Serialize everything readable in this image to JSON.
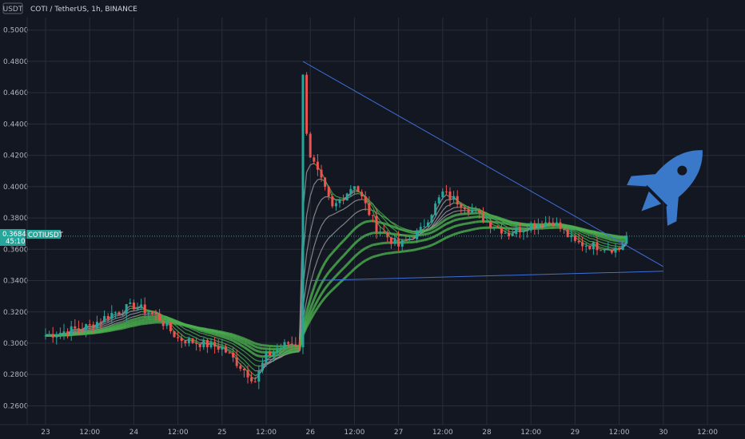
{
  "header": {
    "currency_badge": "USDT",
    "title": "COTI / TetherUS, 1h, BINANCE"
  },
  "colors": {
    "background": "#131722",
    "grid": "#2a2e39",
    "up": "#26a69a",
    "down": "#ef5350",
    "ribbon_bull": "#4caf50",
    "ribbon_neutral": "#9e9e9e",
    "trendline": "#3f6fd8",
    "rocket": "#3a78c9",
    "price_badge": "#26a69a"
  },
  "icons": {
    "rocket": "rocket-icon"
  },
  "price_badge": {
    "price": "0.3684",
    "countdown": "45:10",
    "symbol": "COTIUSDT"
  },
  "chart_data": {
    "type": "candlestick",
    "title": "COTI / TetherUS, 1h, BINANCE",
    "ylabel": "USDT",
    "ylim": [
      0.248,
      0.508
    ],
    "y_ticks": [
      "0.5000",
      "0.4800",
      "0.4600",
      "0.4400",
      "0.4200",
      "0.4000",
      "0.3800",
      "0.3600",
      "0.3400",
      "0.3200",
      "0.3000",
      "0.2800",
      "0.2600"
    ],
    "x_ticks": [
      "23",
      "12:00",
      "24",
      "12:00",
      "25",
      "12:00",
      "26",
      "12:00",
      "27",
      "12:00",
      "28",
      "12:00",
      "29",
      "12:00",
      "30",
      "12:00"
    ],
    "grid": true,
    "last_price": 0.3684,
    "price_path": [
      [
        "23 00:00",
        0.305
      ],
      [
        "23 12:00",
        0.311
      ],
      [
        "23 18:00",
        0.319
      ],
      [
        "24 00:00",
        0.324
      ],
      [
        "24 06:00",
        0.318
      ],
      [
        "24 12:00",
        0.303
      ],
      [
        "24 18:00",
        0.3
      ],
      [
        "25 00:00",
        0.297
      ],
      [
        "25 06:00",
        0.283
      ],
      [
        "25 09:00",
        0.276
      ],
      [
        "25 12:00",
        0.292
      ],
      [
        "25 18:00",
        0.3
      ],
      [
        "25 21:00",
        0.299
      ],
      [
        "25 22:00",
        0.47
      ],
      [
        "25 23:00",
        0.436
      ],
      [
        "26 00:00",
        0.42
      ],
      [
        "26 06:00",
        0.386
      ],
      [
        "26 12:00",
        0.402
      ],
      [
        "26 18:00",
        0.374
      ],
      [
        "27 00:00",
        0.362
      ],
      [
        "27 06:00",
        0.372
      ],
      [
        "27 12:00",
        0.396
      ],
      [
        "27 18:00",
        0.388
      ],
      [
        "28 00:00",
        0.378
      ],
      [
        "28 06:00",
        0.37
      ],
      [
        "28 12:00",
        0.376
      ],
      [
        "28 18:00",
        0.378
      ],
      [
        "29 00:00",
        0.364
      ],
      [
        "29 06:00",
        0.362
      ],
      [
        "29 12:00",
        0.36
      ],
      [
        "29 14:00",
        0.3684
      ]
    ],
    "trendlines": [
      {
        "from": [
          "25 22:00",
          0.48
        ],
        "to": [
          "30 00:00",
          0.349
        ]
      },
      {
        "from": [
          "26 00:00",
          0.34
        ],
        "to": [
          "30 00:00",
          0.346
        ]
      }
    ]
  }
}
